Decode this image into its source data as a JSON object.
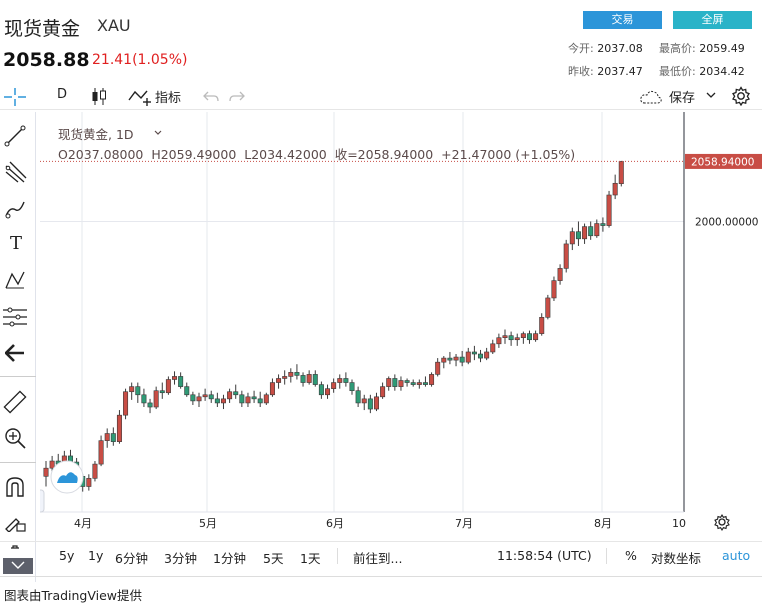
{
  "header": {
    "title": "现货黄金",
    "symbol": "XAU",
    "price": "2058.88",
    "change": "21.41(1.05%)",
    "trade_label": "交易",
    "fullscreen_label": "全屏",
    "stats": {
      "open_label": "今开:",
      "open": "2037.08",
      "high_label": "最高价:",
      "high": "2059.49",
      "prev_label": "昨收:",
      "prev": "2037.47",
      "low_label": "最低价:",
      "low": "2034.42"
    }
  },
  "toolbar": {
    "interval": "D",
    "indicators_label": "指标",
    "save_label": "保存"
  },
  "legend": {
    "name": "现货黄金",
    "interval": "1D",
    "ohlc_text": "O2037.08000  H2059.49000  L2034.42000  收=2058.94000  +21.47000 (+1.05%)"
  },
  "price_axis": {
    "current_label": "2058.94000",
    "tick_label": "2000.00000"
  },
  "bottom_bar": {
    "ranges": [
      "5y",
      "1y",
      "6分钟",
      "3分钟",
      "1分钟",
      "5天",
      "1天"
    ],
    "goto_label": "前往到...",
    "time": "11:58:54 (UTC)",
    "percent_label": "%",
    "log_label": "对数坐标",
    "auto_label": "auto"
  },
  "footer": {
    "credit": "图表由TradingView提供"
  },
  "colors": {
    "up": "#c84d45",
    "down": "#2f9a76",
    "accent": "#2c95d9",
    "price_line": "#c84d45"
  },
  "chart_data": {
    "type": "candlestick",
    "x_ticks": [
      "4月",
      "5月",
      "6月",
      "7月",
      "8月",
      "10"
    ],
    "y_tick": 2000,
    "current": 2058.94,
    "candles": [
      [
        1750.0,
        1765.0,
        1740.0,
        1758.0
      ],
      [
        1758.0,
        1770.0,
        1752.0,
        1765.0
      ],
      [
        1765.0,
        1772.0,
        1760.0,
        1762.0
      ],
      [
        1762.0,
        1775.0,
        1758.0,
        1770.0
      ],
      [
        1770.0,
        1776.0,
        1760.0,
        1764.0
      ],
      [
        1764.0,
        1768.0,
        1745.0,
        1750.0
      ],
      [
        1750.0,
        1752.0,
        1735.0,
        1740.0
      ],
      [
        1740.0,
        1752.0,
        1736.0,
        1748.0
      ],
      [
        1748.0,
        1765.0,
        1745.0,
        1762.0
      ],
      [
        1762.0,
        1790.0,
        1760.0,
        1785.0
      ],
      [
        1785.0,
        1797.0,
        1778.0,
        1792.0
      ],
      [
        1792.0,
        1798.0,
        1780.0,
        1784.0
      ],
      [
        1784.0,
        1815.0,
        1782.0,
        1810.0
      ],
      [
        1810.0,
        1836.0,
        1806.0,
        1833.0
      ],
      [
        1833.0,
        1842.0,
        1825.0,
        1838.0
      ],
      [
        1838.0,
        1842.0,
        1822.0,
        1830.0
      ],
      [
        1830.0,
        1836.0,
        1818.0,
        1822.0
      ],
      [
        1822.0,
        1826.0,
        1812.0,
        1818.0
      ],
      [
        1818.0,
        1838.0,
        1816.0,
        1834.0
      ],
      [
        1834.0,
        1842.0,
        1826.0,
        1832.0
      ],
      [
        1832.0,
        1848.0,
        1830.0,
        1845.0
      ],
      [
        1845.0,
        1853.0,
        1840.0,
        1848.0
      ],
      [
        1848.0,
        1852.0,
        1836.0,
        1838.0
      ],
      [
        1838.0,
        1842.0,
        1828.0,
        1830.0
      ],
      [
        1830.0,
        1833.0,
        1820.0,
        1824.0
      ],
      [
        1824.0,
        1832.0,
        1818.0,
        1828.0
      ],
      [
        1828.0,
        1836.0,
        1824.0,
        1830.0
      ],
      [
        1830.0,
        1834.0,
        1822.0,
        1826.0
      ],
      [
        1826.0,
        1832.0,
        1818.0,
        1822.0
      ],
      [
        1822.0,
        1830.0,
        1816.0,
        1826.0
      ],
      [
        1826.0,
        1836.0,
        1822.0,
        1833.0
      ],
      [
        1833.0,
        1840.0,
        1826.0,
        1830.0
      ],
      [
        1830.0,
        1834.0,
        1818.0,
        1822.0
      ],
      [
        1822.0,
        1832.0,
        1818.0,
        1828.0
      ],
      [
        1828.0,
        1834.0,
        1822.0,
        1826.0
      ],
      [
        1826.0,
        1833.0,
        1818.0,
        1822.0
      ],
      [
        1822.0,
        1832.0,
        1820.0,
        1830.0
      ],
      [
        1830.0,
        1846.0,
        1828.0,
        1842.0
      ],
      [
        1842.0,
        1850.0,
        1836.0,
        1846.0
      ],
      [
        1846.0,
        1854.0,
        1840.0,
        1848.0
      ],
      [
        1848.0,
        1856.0,
        1842.0,
        1852.0
      ],
      [
        1852.0,
        1860.0,
        1845.0,
        1849.0
      ],
      [
        1849.0,
        1852.0,
        1838.0,
        1842.0
      ],
      [
        1842.0,
        1854.0,
        1840.0,
        1850.0
      ],
      [
        1850.0,
        1854.0,
        1838.0,
        1840.0
      ],
      [
        1840.0,
        1843.0,
        1826.0,
        1830.0
      ],
      [
        1830.0,
        1840.0,
        1826.0,
        1836.0
      ],
      [
        1836.0,
        1846.0,
        1832.0,
        1842.0
      ],
      [
        1842.0,
        1850.0,
        1836.0,
        1846.0
      ],
      [
        1846.0,
        1852.0,
        1838.0,
        1842.0
      ],
      [
        1842.0,
        1845.0,
        1830.0,
        1834.0
      ],
      [
        1834.0,
        1838.0,
        1818.0,
        1822.0
      ],
      [
        1822.0,
        1830.0,
        1815.0,
        1826.0
      ],
      [
        1826.0,
        1830.0,
        1812.0,
        1816.0
      ],
      [
        1816.0,
        1832.0,
        1814.0,
        1828.0
      ],
      [
        1828.0,
        1842.0,
        1826.0,
        1838.0
      ],
      [
        1838.0,
        1848.0,
        1834.0,
        1846.0
      ],
      [
        1846.0,
        1850.0,
        1834.0,
        1838.0
      ],
      [
        1838.0,
        1848.0,
        1834.0,
        1844.0
      ],
      [
        1844.0,
        1846.0,
        1838.0,
        1842.0
      ],
      [
        1842.0,
        1845.0,
        1838.0,
        1840.0
      ],
      [
        1840.0,
        1845.0,
        1836.0,
        1842.0
      ],
      [
        1842.0,
        1848.0,
        1838.0,
        1840.0
      ],
      [
        1840.0,
        1852.0,
        1838.0,
        1850.0
      ],
      [
        1850.0,
        1866.0,
        1848.0,
        1862.0
      ],
      [
        1862.0,
        1868.0,
        1856.0,
        1866.0
      ],
      [
        1866.0,
        1872.0,
        1860.0,
        1864.0
      ],
      [
        1864.0,
        1870.0,
        1858.0,
        1867.0
      ],
      [
        1867.0,
        1873.0,
        1858.0,
        1862.0
      ],
      [
        1862.0,
        1876.0,
        1860.0,
        1872.0
      ],
      [
        1872.0,
        1878.0,
        1864.0,
        1870.0
      ],
      [
        1870.0,
        1874.0,
        1862.0,
        1866.0
      ],
      [
        1866.0,
        1876.0,
        1864.0,
        1872.0
      ],
      [
        1872.0,
        1884.0,
        1870.0,
        1880.0
      ],
      [
        1880.0,
        1890.0,
        1876.0,
        1886.0
      ],
      [
        1886.0,
        1894.0,
        1880.0,
        1888.0
      ],
      [
        1888.0,
        1892.0,
        1878.0,
        1884.0
      ],
      [
        1884.0,
        1890.0,
        1878.0,
        1886.0
      ],
      [
        1886.0,
        1892.0,
        1880.0,
        1890.0
      ],
      [
        1890.0,
        1893.0,
        1880.0,
        1884.0
      ],
      [
        1884.0,
        1893.0,
        1882.0,
        1890.0
      ],
      [
        1890.0,
        1910.0,
        1888.0,
        1906.0
      ],
      [
        1906.0,
        1928.0,
        1904.0,
        1925.0
      ],
      [
        1925.0,
        1946.0,
        1922.0,
        1942.0
      ],
      [
        1942.0,
        1958.0,
        1938.0,
        1954.0
      ],
      [
        1954.0,
        1982.0,
        1950.0,
        1978.0
      ],
      [
        1978.0,
        1994.0,
        1972.0,
        1990.0
      ],
      [
        1990.0,
        2000.0,
        1976.0,
        1983.0
      ],
      [
        1983.0,
        1998.0,
        1978.0,
        1995.0
      ],
      [
        1995.0,
        2000.0,
        1982.0,
        1986.0
      ],
      [
        1986.0,
        2002.0,
        1984.0,
        1998.0
      ],
      [
        1998.0,
        2004.0,
        1990.0,
        1996.0
      ],
      [
        1996.0,
        2030.0,
        1994.0,
        2026.0
      ],
      [
        2026.0,
        2046.0,
        2022.0,
        2037.5
      ],
      [
        2037.08,
        2059.49,
        2034.42,
        2058.94
      ]
    ]
  }
}
